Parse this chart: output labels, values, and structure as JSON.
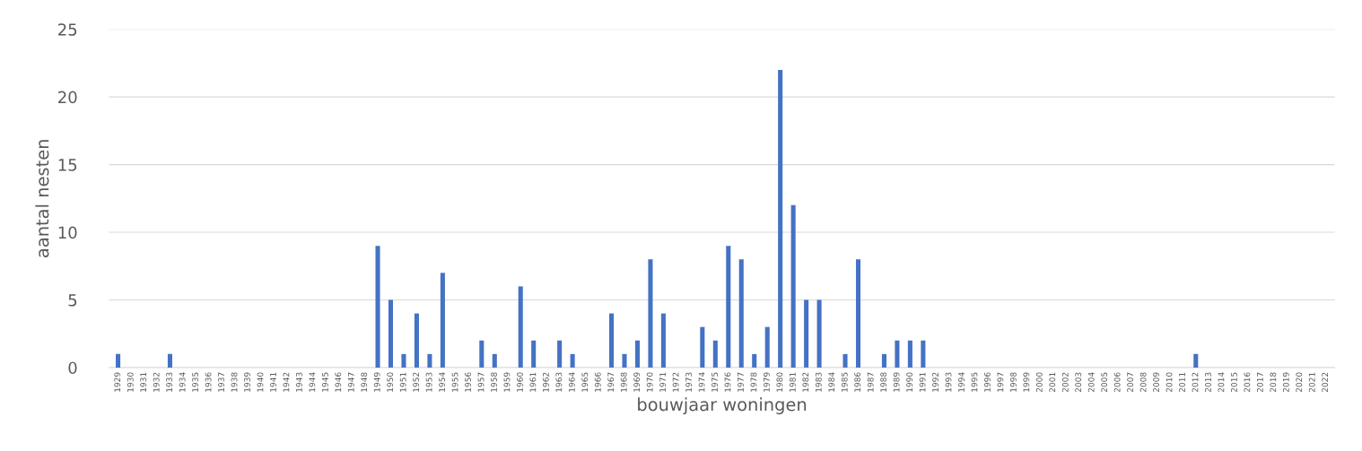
{
  "chart_data": {
    "type": "bar",
    "xlabel": "bouwjaar woningen",
    "ylabel": "aantal nesten",
    "categories": [
      "1929",
      "1930",
      "1931",
      "1932",
      "1933",
      "1934",
      "1935",
      "1936",
      "1937",
      "1938",
      "1939",
      "1940",
      "1941",
      "1942",
      "1943",
      "1944",
      "1945",
      "1946",
      "1947",
      "1948",
      "1949",
      "1950",
      "1951",
      "1952",
      "1953",
      "1954",
      "1955",
      "1956",
      "1957",
      "1958",
      "1959",
      "1960",
      "1961",
      "1962",
      "1963",
      "1964",
      "1965",
      "1966",
      "1967",
      "1968",
      "1969",
      "1970",
      "1971",
      "1972",
      "1973",
      "1974",
      "1975",
      "1976",
      "1977",
      "1978",
      "1979",
      "1980",
      "1981",
      "1982",
      "1983",
      "1984",
      "1985",
      "1986",
      "1987",
      "1988",
      "1989",
      "1990",
      "1991",
      "1992",
      "1993",
      "1994",
      "1995",
      "1996",
      "1997",
      "1998",
      "1999",
      "2000",
      "2001",
      "2002",
      "2003",
      "2004",
      "2005",
      "2006",
      "2007",
      "2008",
      "2009",
      "2010",
      "2011",
      "2012",
      "2013",
      "2014",
      "2015",
      "2016",
      "2017",
      "2018",
      "2019",
      "2020",
      "2021",
      "2022"
    ],
    "values": [
      1,
      0,
      0,
      0,
      1,
      0,
      0,
      0,
      0,
      0,
      0,
      0,
      0,
      0,
      0,
      0,
      0,
      0,
      0,
      0,
      9,
      5,
      1,
      4,
      1,
      7,
      0,
      0,
      2,
      1,
      0,
      6,
      2,
      0,
      2,
      1,
      0,
      0,
      4,
      1,
      2,
      8,
      4,
      0,
      0,
      3,
      2,
      9,
      8,
      1,
      3,
      22,
      12,
      5,
      5,
      0,
      1,
      8,
      0,
      1,
      2,
      2,
      2,
      0,
      0,
      0,
      0,
      0,
      0,
      0,
      0,
      0,
      0,
      0,
      0,
      0,
      0,
      0,
      0,
      0,
      0,
      0,
      0,
      1,
      0,
      0,
      0,
      0,
      0,
      0,
      0,
      0,
      0,
      0
    ],
    "color": "#4472c4",
    "ylim": [
      0,
      25
    ],
    "yticks": [
      0,
      5,
      10,
      15,
      20,
      25
    ],
    "grid": "y"
  }
}
